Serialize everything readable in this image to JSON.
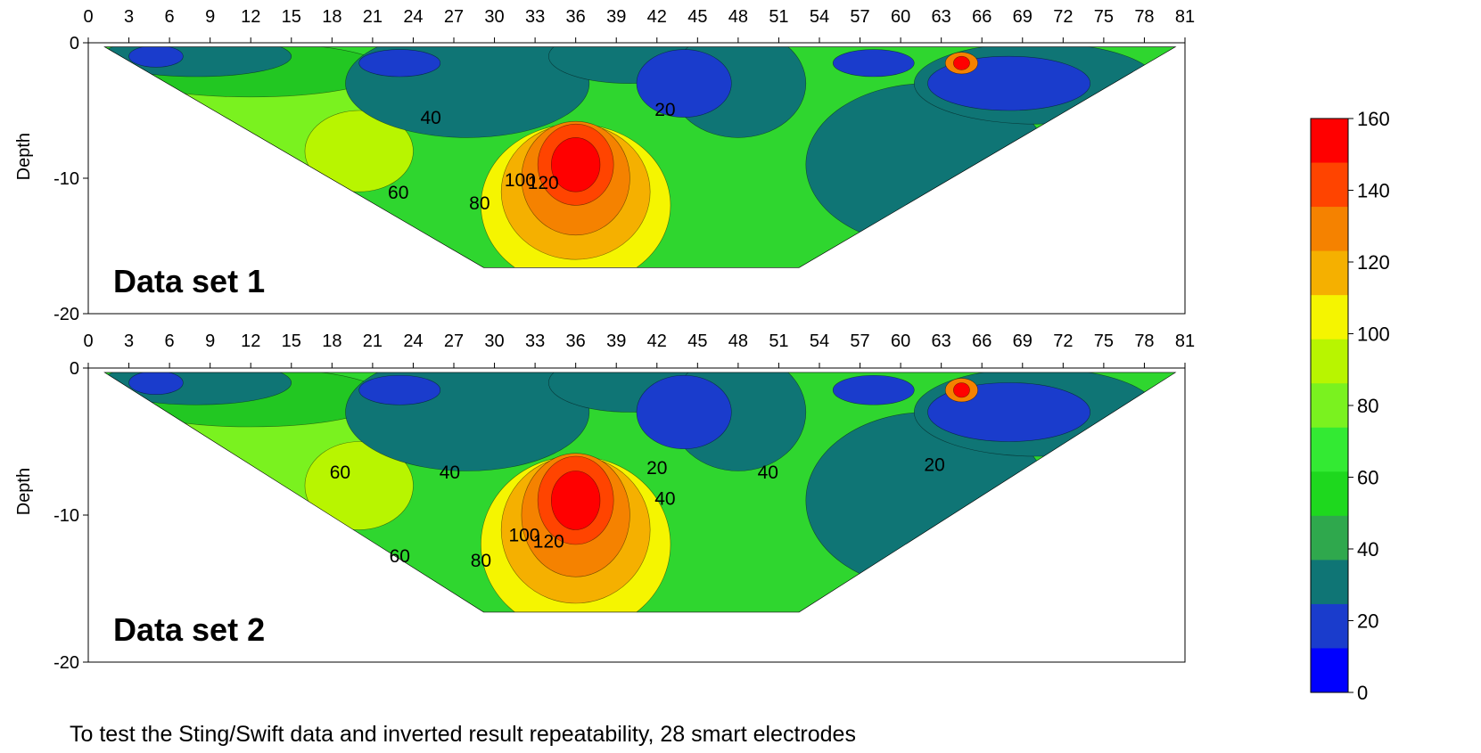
{
  "chart_data": [
    {
      "type": "heatmap",
      "annotation": "Data set 1",
      "ylabel": "Depth",
      "x_ticks": [
        0,
        3,
        6,
        9,
        12,
        15,
        18,
        21,
        24,
        27,
        30,
        33,
        36,
        39,
        42,
        45,
        48,
        51,
        54,
        57,
        60,
        63,
        66,
        69,
        72,
        75,
        78,
        81
      ],
      "y_ticks": [
        0,
        -10,
        -20
      ],
      "xlim": [
        0,
        81
      ],
      "ylim": [
        -20,
        0
      ],
      "contour_labels": [
        {
          "text": "40",
          "x": 25.3,
          "y": -6.0
        },
        {
          "text": "20",
          "x": 42.6,
          "y": -5.4
        },
        {
          "text": "60",
          "x": 22.9,
          "y": -11.5
        },
        {
          "text": "80",
          "x": 28.9,
          "y": -12.3
        },
        {
          "text": "100",
          "x": 31.9,
          "y": -10.6
        },
        {
          "text": "120",
          "x": 33.6,
          "y": -10.8
        }
      ]
    },
    {
      "type": "heatmap",
      "annotation": "Data set 2",
      "ylabel": "Depth",
      "x_ticks": [
        0,
        3,
        6,
        9,
        12,
        15,
        18,
        21,
        24,
        27,
        30,
        33,
        36,
        39,
        42,
        45,
        48,
        51,
        54,
        57,
        60,
        63,
        66,
        69,
        72,
        75,
        78,
        81
      ],
      "y_ticks": [
        0,
        -10,
        -20
      ],
      "xlim": [
        0,
        81
      ],
      "ylim": [
        -20,
        0
      ],
      "contour_labels": [
        {
          "text": "60",
          "x": 18.6,
          "y": -7.5
        },
        {
          "text": "40",
          "x": 26.7,
          "y": -7.5
        },
        {
          "text": "20",
          "x": 42.0,
          "y": -7.2
        },
        {
          "text": "40",
          "x": 42.6,
          "y": -9.3
        },
        {
          "text": "40",
          "x": 50.2,
          "y": -7.5
        },
        {
          "text": "20",
          "x": 62.5,
          "y": -7.0
        },
        {
          "text": "60",
          "x": 23.0,
          "y": -13.2
        },
        {
          "text": "80",
          "x": 29.0,
          "y": -13.5
        },
        {
          "text": "100",
          "x": 32.2,
          "y": -11.8
        },
        {
          "text": "120",
          "x": 34.0,
          "y": -12.2
        }
      ]
    }
  ],
  "colorbar": {
    "ticks": [
      160,
      140,
      120,
      100,
      80,
      60,
      40,
      20,
      0
    ],
    "colors": [
      "#ff0000",
      "#ff4400",
      "#f58200",
      "#f5b000",
      "#f5f500",
      "#b8f500",
      "#7af21f",
      "#33ea33",
      "#1ed81e",
      "#2fa84d",
      "#0f7575",
      "#1a3ccc",
      "#0000ff"
    ]
  },
  "caption": "To test the Sting/Swift data and inverted result repeatability, 28 smart electrodes"
}
